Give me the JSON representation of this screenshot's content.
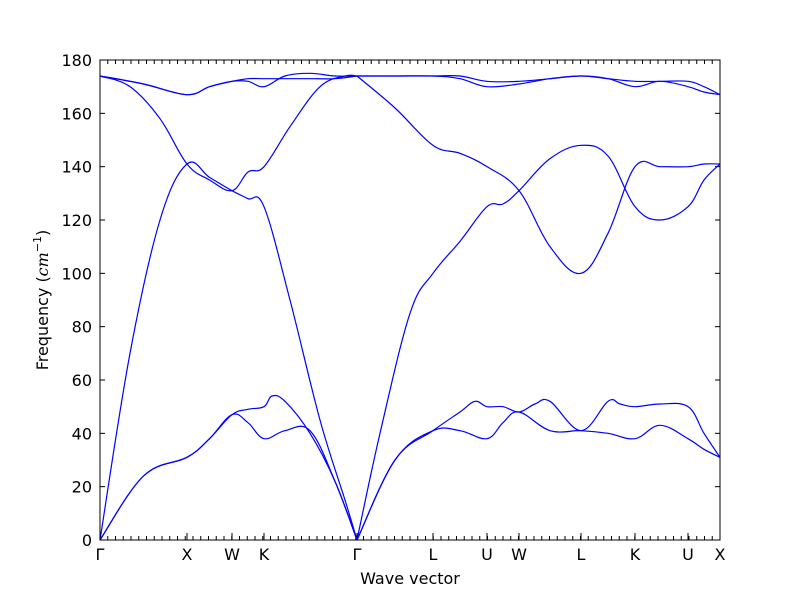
{
  "chart_data": {
    "type": "line",
    "title": "",
    "xlabel": "Wave vector",
    "ylabel": "Frequency (",
    "ylabel_unit": "cm",
    "ylabel_exp": "−1",
    "ylabel_close": ")",
    "ylim": [
      0,
      180
    ],
    "yticks": [
      0,
      20,
      40,
      60,
      80,
      100,
      120,
      140,
      160,
      180
    ],
    "ytick_labels": [
      "0",
      "20",
      "40",
      "60",
      "80",
      "100",
      "120",
      "140",
      "160",
      "180"
    ],
    "xlim": [
      0,
      6.2
    ],
    "hsym_positions": [
      0,
      0.87,
      1.32,
      1.64,
      2.57,
      3.33,
      3.87,
      4.19,
      4.81,
      5.35,
      5.88,
      6.2
    ],
    "hsym_labels": [
      "Γ",
      "X",
      "W",
      "K",
      "Γ",
      "L",
      "U",
      "W",
      "L",
      "K",
      "U",
      "X"
    ],
    "series_color": "#0000ff",
    "series": [
      {
        "x": [
          0,
          0.435,
          0.87,
          1.095,
          1.32,
          1.48,
          1.64,
          1.85,
          2.1,
          2.35,
          2.57
        ],
        "y": [
          0,
          24,
          31,
          38,
          47,
          44,
          38,
          41,
          41,
          22,
          0
        ]
      },
      {
        "x": [
          0,
          0.435,
          0.87,
          1.095,
          1.32,
          1.48,
          1.64,
          1.72,
          1.85,
          2.1,
          2.35,
          2.57
        ],
        "y": [
          0,
          24,
          31,
          38,
          47,
          49,
          50,
          54,
          52,
          40,
          22,
          0
        ]
      },
      {
        "x": [
          2.57,
          2.95,
          3.33,
          3.6,
          3.87,
          4.03,
          4.19,
          4.5,
          4.81,
          5.08,
          5.35,
          5.6,
          5.88,
          6.04,
          6.2
        ],
        "y": [
          0,
          30,
          41,
          41,
          38,
          44,
          48,
          41,
          41,
          40,
          38,
          43,
          38,
          34,
          31
        ]
      },
      {
        "x": [
          2.57,
          2.95,
          3.33,
          3.6,
          3.75,
          3.87,
          4.03,
          4.19,
          4.35,
          4.5,
          4.81,
          5.08,
          5.2,
          5.35,
          5.6,
          5.88,
          6.04,
          6.2
        ],
        "y": [
          0,
          30,
          41,
          48,
          52,
          50,
          50,
          48,
          51,
          52,
          41,
          52,
          51,
          50,
          51,
          50,
          40,
          31
        ]
      },
      {
        "x": [
          0,
          0.3,
          0.6,
          0.87,
          1.095,
          1.32,
          1.48,
          1.64,
          1.9,
          2.2,
          2.45,
          2.57
        ],
        "y": [
          0,
          70,
          120,
          141,
          136,
          131,
          128,
          125,
          90,
          45,
          15,
          0
        ]
      },
      {
        "x": [
          2.57,
          2.8,
          3.1,
          3.33,
          3.6,
          3.87,
          4.03,
          4.19,
          4.5,
          4.81,
          5.08,
          5.35,
          5.6,
          5.88,
          6.04,
          6.2
        ],
        "y": [
          0,
          40,
          85,
          100,
          112,
          125,
          126,
          131,
          143,
          148,
          144,
          125,
          120,
          125,
          135,
          141
        ]
      },
      {
        "x": [
          0,
          0.3,
          0.6,
          0.87,
          1.095,
          1.32,
          1.48,
          1.64,
          1.9,
          2.2,
          2.45,
          2.57
        ],
        "y": [
          174,
          170,
          158,
          141,
          135,
          131,
          138,
          140,
          155,
          170,
          174,
          174
        ]
      },
      {
        "x": [
          2.57,
          2.95,
          3.33,
          3.6,
          3.87,
          4.19,
          4.5,
          4.81,
          5.08,
          5.35,
          5.6,
          5.88,
          6.04,
          6.2
        ],
        "y": [
          174,
          162,
          148,
          145,
          140,
          131,
          110,
          100,
          115,
          140,
          140,
          140,
          141,
          141
        ]
      },
      {
        "x": [
          0,
          0.435,
          0.87,
          1.095,
          1.32,
          1.48,
          1.64,
          1.85,
          2.1,
          2.35,
          2.57
        ],
        "y": [
          174,
          171,
          167,
          170,
          172,
          173,
          173,
          173,
          173,
          173,
          174
        ]
      },
      {
        "x": [
          0,
          0.435,
          0.87,
          1.095,
          1.32,
          1.48,
          1.64,
          1.85,
          2.1,
          2.35,
          2.57
        ],
        "y": [
          174,
          171,
          167,
          170,
          172,
          172,
          170,
          174,
          175,
          174,
          174
        ]
      },
      {
        "x": [
          2.57,
          2.95,
          3.33,
          3.6,
          3.87,
          4.19,
          4.5,
          4.81,
          5.08,
          5.35,
          5.6,
          5.88,
          6.04,
          6.2
        ],
        "y": [
          174,
          174,
          174,
          174,
          172,
          172,
          173,
          174,
          173,
          172,
          172,
          172,
          170,
          167
        ]
      },
      {
        "x": [
          2.57,
          2.95,
          3.33,
          3.6,
          3.87,
          4.19,
          4.5,
          4.81,
          5.08,
          5.35,
          5.6,
          5.88,
          6.04,
          6.2
        ],
        "y": [
          174,
          174,
          174,
          173,
          170,
          171,
          173,
          174,
          173,
          170,
          172,
          170,
          168,
          167
        ]
      }
    ]
  }
}
